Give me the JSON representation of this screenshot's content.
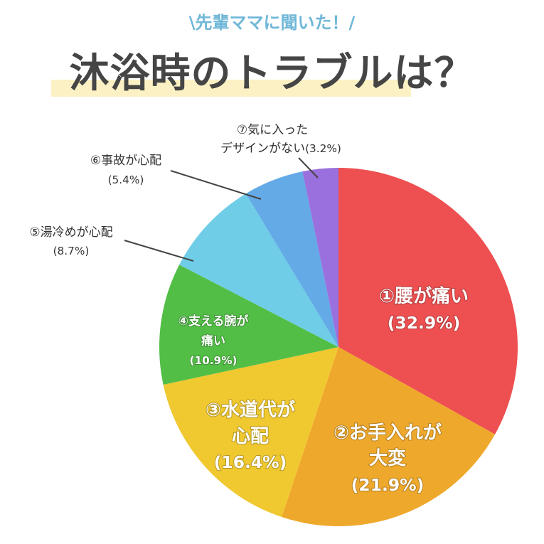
{
  "header": {
    "subtitle": "\\先輩ママに聞いた！/",
    "title": "沐浴時のトラブルは？"
  },
  "chart_data": {
    "type": "pie",
    "start": "top",
    "direction": "clockwise",
    "slices": [
      {
        "label_lines": [
          "①腰が痛い"
        ],
        "pct_label": "(32.9%)",
        "value": 32.9,
        "color": "#ee4f50"
      },
      {
        "label_lines": [
          "②お手入れが",
          "大変"
        ],
        "pct_label": "(21.9%)",
        "value": 21.9,
        "color": "#eea82b"
      },
      {
        "label_lines": [
          "③水道代が",
          "心配"
        ],
        "pct_label": "(16.4%)",
        "value": 16.4,
        "color": "#f0c830"
      },
      {
        "label_lines": [
          "④支える腕が",
          "痛い"
        ],
        "pct_label": "(10.9%)",
        "value": 10.9,
        "color": "#52be46"
      },
      {
        "label_lines": [
          "⑤湯冷めが心配"
        ],
        "pct_label": "(8.7%)",
        "value": 8.7,
        "color": "#6fcde7"
      },
      {
        "label_lines": [
          "⑥事故が心配"
        ],
        "pct_label": "(5.4%)",
        "value": 5.4,
        "color": "#63aae7"
      },
      {
        "label_lines": [
          "⑦気に入った",
          "デザインがない"
        ],
        "pct_label": "(3.2%)",
        "value": 3.2,
        "color": "#9a6fde"
      }
    ]
  }
}
